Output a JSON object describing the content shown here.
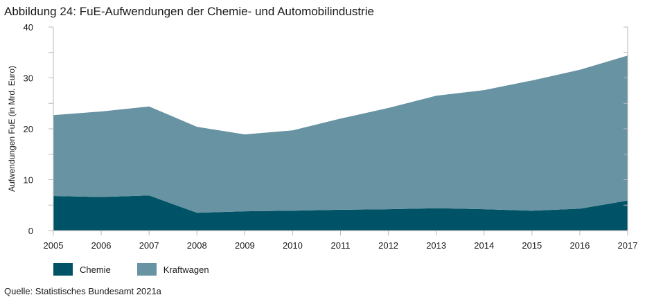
{
  "title": "Abbildung 24: FuE-Aufwendungen der Chemie- und Automobilindustrie",
  "source": "Quelle: Statistisches Bundesamt 2021a",
  "colors": {
    "chemie": "#005366",
    "kraftwagen": "#6893a2",
    "axis": "#b9b9b9"
  },
  "chart_data": {
    "type": "area",
    "stacked": true,
    "x": [
      "2005",
      "2006",
      "2007",
      "2008",
      "2009",
      "2010",
      "2011",
      "2012",
      "2013",
      "2014",
      "2015",
      "2016",
      "2017"
    ],
    "series": [
      {
        "name": "Chemie",
        "values": [
          6.8,
          6.6,
          6.9,
          3.5,
          3.8,
          3.9,
          4.1,
          4.2,
          4.4,
          4.2,
          3.9,
          4.3,
          5.9
        ]
      },
      {
        "name": "Kraftwagen",
        "values": [
          15.9,
          16.8,
          17.5,
          16.9,
          15.1,
          15.8,
          17.9,
          19.9,
          22.1,
          23.4,
          25.6,
          27.3,
          28.5
        ]
      }
    ],
    "ylabel": "Aufwendungen FuE (in Mrd. Euro)",
    "xlabel": "",
    "ylim": [
      0,
      40
    ],
    "yticks": [
      0,
      10,
      20,
      30,
      40
    ],
    "grid": false,
    "legend": "bottom-left"
  }
}
